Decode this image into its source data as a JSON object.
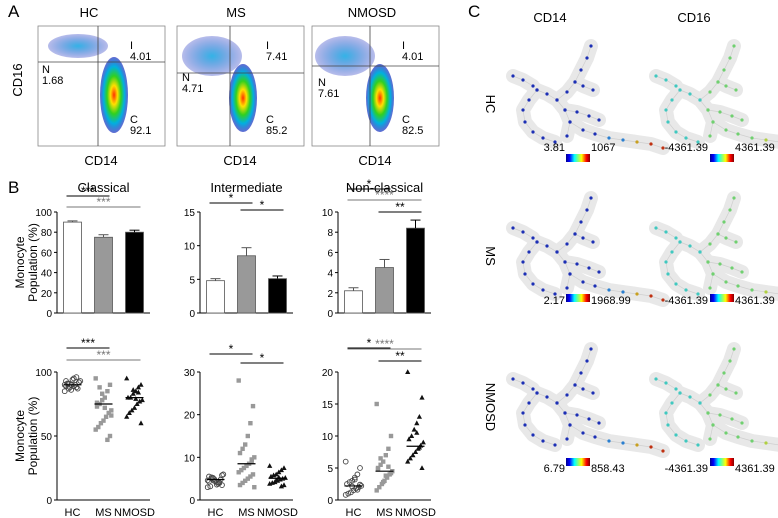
{
  "panel_letters": {
    "a": "A",
    "b": "B",
    "c": "C"
  },
  "flow": {
    "ylabel": "CD16",
    "xlabel": "CD14",
    "plots": [
      {
        "title": "HC",
        "gates": [
          {
            "code": "I",
            "value": "4.01"
          },
          {
            "code": "N",
            "value": "1.68"
          },
          {
            "code": "C",
            "value": "92.1"
          }
        ]
      },
      {
        "title": "MS",
        "gates": [
          {
            "code": "I",
            "value": "7.41"
          },
          {
            "code": "N",
            "value": "4.71"
          },
          {
            "code": "C",
            "value": "85.2"
          }
        ]
      },
      {
        "title": "NMOSD",
        "gates": [
          {
            "code": "I",
            "value": "4.01"
          },
          {
            "code": "N",
            "value": "7.61"
          },
          {
            "code": "C",
            "value": "82.5"
          }
        ]
      }
    ]
  },
  "chart_data": [
    {
      "type": "bar",
      "title": "Classical",
      "ylabel": "Monocyte Population (%)",
      "categories": [
        "HC",
        "MS",
        "NMOSD"
      ],
      "values": [
        90,
        75,
        80
      ],
      "errors": [
        1.2,
        2.5,
        2.0
      ],
      "ylim": [
        0,
        100
      ],
      "yticks": [
        "0",
        "20",
        "40",
        "60",
        "80",
        "100"
      ],
      "significance": [
        {
          "from": 0,
          "to": 1,
          "label": "***",
          "color": "#000000"
        },
        {
          "from": 0,
          "to": 2,
          "label": "***",
          "color": "#777777"
        }
      ]
    },
    {
      "type": "bar",
      "title": "Intermediate",
      "ylabel": "",
      "categories": [
        "HC",
        "MS",
        "NMOSD"
      ],
      "values": [
        4.8,
        8.5,
        5.1
      ],
      "errors": [
        0.3,
        1.2,
        0.4
      ],
      "ylim": [
        0,
        15
      ],
      "yticks": [
        "0",
        "5",
        "10",
        "15"
      ],
      "significance": [
        {
          "from": 0,
          "to": 1,
          "label": "*",
          "color": "#000000"
        },
        {
          "from": 1,
          "to": 2,
          "label": "*",
          "color": "#000000"
        }
      ]
    },
    {
      "type": "bar",
      "title": "Non-classical",
      "ylabel": "",
      "categories": [
        "HC",
        "MS",
        "NMOSD"
      ],
      "values": [
        2.2,
        4.5,
        8.4
      ],
      "errors": [
        0.3,
        0.8,
        0.8
      ],
      "ylim": [
        0,
        10
      ],
      "yticks": [
        "0",
        "2",
        "4",
        "6",
        "8",
        "10"
      ],
      "significance": [
        {
          "from": 0,
          "to": 1,
          "label": "*",
          "color": "#000000"
        },
        {
          "from": 1,
          "to": 2,
          "label": "**",
          "color": "#000000"
        },
        {
          "from": 0,
          "to": 2,
          "label": "****",
          "color": "#777777"
        }
      ]
    },
    {
      "type": "scatter",
      "title": "",
      "ylabel": "Monocyte Population (%)",
      "categories": [
        "HC",
        "MS",
        "NMOSD"
      ],
      "series": [
        {
          "name": "HC",
          "marker": "circle",
          "values": [
            90,
            92,
            88,
            95,
            86,
            91,
            89,
            93,
            87,
            90,
            94,
            88,
            91,
            85,
            92,
            96,
            89,
            90,
            87,
            93
          ]
        },
        {
          "name": "MS",
          "marker": "square",
          "values": [
            95,
            90,
            85,
            80,
            78,
            75,
            73,
            70,
            68,
            65,
            62,
            60,
            57,
            55,
            50,
            47,
            72,
            83,
            88,
            76,
            66
          ]
        },
        {
          "name": "NMOSD",
          "marker": "triangle",
          "values": [
            95,
            90,
            88,
            85,
            83,
            80,
            80,
            78,
            77,
            75,
            72,
            70,
            68,
            65,
            60,
            84,
            79,
            86
          ]
        }
      ],
      "means": [
        90,
        75,
        80
      ],
      "ylim": [
        0,
        100
      ],
      "yticks": [
        "0",
        "50",
        "100"
      ],
      "significance": [
        {
          "from": 0,
          "to": 1,
          "label": "***",
          "color": "#000000"
        },
        {
          "from": 0,
          "to": 2,
          "label": "***",
          "color": "#777777"
        }
      ]
    },
    {
      "type": "scatter",
      "title": "",
      "ylabel": "",
      "categories": [
        "HC",
        "MS",
        "NMOSD"
      ],
      "series": [
        {
          "name": "HC",
          "marker": "circle",
          "values": [
            3.0,
            3.5,
            4.0,
            4.2,
            4.5,
            5.0,
            5.5,
            6.0,
            4.8,
            3.8,
            4.4,
            5.2,
            3.2,
            4.6,
            5.8,
            4.1,
            3.6,
            4.9,
            5.3,
            4.3
          ]
        },
        {
          "name": "MS",
          "marker": "square",
          "values": [
            28,
            22,
            18,
            15,
            13,
            12,
            11,
            10,
            9,
            8.5,
            8,
            7.5,
            7,
            6.5,
            6,
            5.5,
            5,
            4.5,
            4,
            3.5,
            3,
            9.5
          ]
        },
        {
          "name": "NMOSD",
          "marker": "triangle",
          "values": [
            8,
            7.5,
            7,
            6.5,
            6,
            5.8,
            5.5,
            5.2,
            5,
            4.8,
            4.5,
            4.2,
            4,
            3.8,
            3.5,
            3.2,
            5.3,
            4.6
          ]
        }
      ],
      "means": [
        4.8,
        8.5,
        5.1
      ],
      "ylim": [
        0,
        30
      ],
      "yticks": [
        "0",
        "10",
        "20",
        "30"
      ],
      "significance": [
        {
          "from": 0,
          "to": 1,
          "label": "*",
          "color": "#000000"
        },
        {
          "from": 1,
          "to": 2,
          "label": "*",
          "color": "#000000"
        }
      ]
    },
    {
      "type": "scatter",
      "title": "",
      "ylabel": "",
      "categories": [
        "HC",
        "MS",
        "NMOSD"
      ],
      "series": [
        {
          "name": "HC",
          "marker": "circle",
          "values": [
            6.0,
            5.0,
            4.0,
            3.5,
            3.0,
            2.8,
            2.5,
            2.2,
            2.0,
            1.8,
            1.5,
            1.2,
            1.0,
            0.8,
            2.4,
            1.6,
            3.2,
            2.1
          ]
        },
        {
          "name": "MS",
          "marker": "square",
          "values": [
            15,
            10,
            8,
            7,
            6,
            5.5,
            5,
            4.5,
            4,
            3.5,
            3,
            2.5,
            2,
            1.5,
            4.2,
            5.2,
            3.8,
            2.8,
            6.5,
            4.8
          ]
        },
        {
          "name": "NMOSD",
          "marker": "triangle",
          "values": [
            20,
            16,
            13,
            12,
            11,
            10,
            9.5,
            9,
            8.5,
            8,
            7.5,
            7,
            6.5,
            6,
            5,
            8.2,
            10.5
          ]
        }
      ],
      "means": [
        2.2,
        4.5,
        8.4
      ],
      "ylim": [
        0,
        20
      ],
      "yticks": [
        "0",
        "5",
        "10",
        "15",
        "20"
      ],
      "significance": [
        {
          "from": 0,
          "to": 1,
          "label": "*",
          "color": "#000000"
        },
        {
          "from": 1,
          "to": 2,
          "label": "**",
          "color": "#000000"
        },
        {
          "from": 0,
          "to": 2,
          "label": "****",
          "color": "#777777"
        }
      ]
    }
  ],
  "spade": {
    "columns": [
      "CD14",
      "CD16"
    ],
    "rows": [
      {
        "label": "HC",
        "scales": [
          {
            "min": "3.81",
            "max": "1067"
          },
          {
            "min": "-4361.39",
            "max": "4361.39"
          }
        ]
      },
      {
        "label": "MS",
        "scales": [
          {
            "min": "2.17",
            "max": "1968.99"
          },
          {
            "min": "-4361.39",
            "max": "4361.39"
          }
        ]
      },
      {
        "label": "NMOSD",
        "scales": [
          {
            "min": "6.79",
            "max": "858.43"
          },
          {
            "min": "-4361.39",
            "max": "4361.39"
          }
        ]
      }
    ]
  },
  "colors": {
    "hc_bar": "#ffffff",
    "ms_bar": "#999999",
    "nmosd_bar": "#000000",
    "gray_sig": "#777777"
  }
}
